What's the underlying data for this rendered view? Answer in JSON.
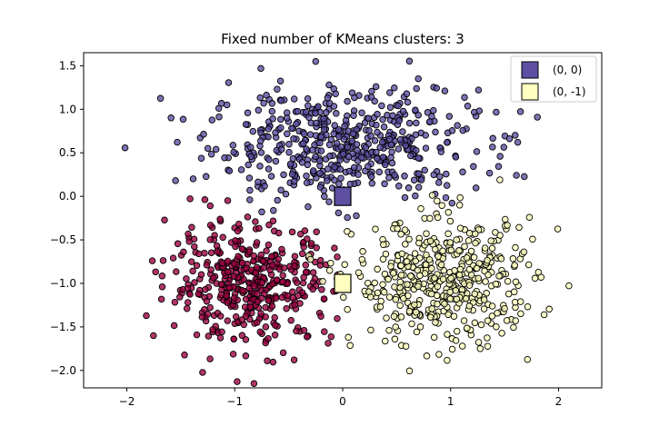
{
  "chart_data": {
    "type": "scatter",
    "title": "Fixed number of KMeans clusters: 3",
    "xlabel": "",
    "ylabel": "",
    "xlim": [
      -2.4,
      2.4
    ],
    "ylim": [
      -2.2,
      1.65
    ],
    "xticks": [
      -2,
      -1,
      0,
      1,
      2
    ],
    "xtick_labels": [
      "−2",
      "−1",
      "0",
      "1",
      "2"
    ],
    "yticks": [
      -2.0,
      -1.5,
      -1.0,
      -0.5,
      0.0,
      0.5,
      1.0,
      1.5
    ],
    "ytick_labels": [
      "−2.0",
      "−1.5",
      "−1.0",
      "−0.5",
      "0.0",
      "0.5",
      "1.0",
      "1.5"
    ],
    "grid": false,
    "legend_position": "top-right",
    "legend": [
      {
        "label": "(0, 0)",
        "color": "#5e4fa2"
      },
      {
        "label": "(0, -1)",
        "color": "#ffffbf"
      }
    ],
    "centers": [
      {
        "x": 0.0,
        "y": 0.0,
        "color": "#5e4fa2"
      },
      {
        "x": 0.0,
        "y": -1.0,
        "color": "#ffffbf"
      }
    ],
    "series": [
      {
        "color": "#5e4fa2",
        "center": [
          0.0,
          0.6
        ],
        "spread": [
          0.62,
          0.32
        ],
        "count": 520
      },
      {
        "color": "#9e0142",
        "center": [
          -0.85,
          -1.0
        ],
        "spread": [
          0.38,
          0.34
        ],
        "count": 430
      },
      {
        "color": "#ffffbf",
        "center": [
          0.95,
          -1.0
        ],
        "spread": [
          0.42,
          0.36
        ],
        "count": 470
      }
    ]
  }
}
